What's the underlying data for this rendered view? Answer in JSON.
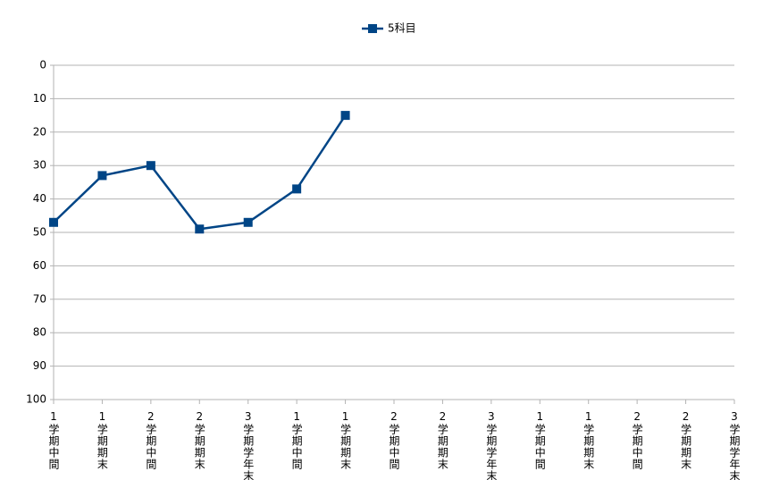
{
  "chart_data": {
    "type": "line",
    "categories": [
      "1学期中間",
      "1学期期末",
      "2学期中間",
      "2学期期末",
      "3学期学年末",
      "1学期中間",
      "1学期期末",
      "2学期中間",
      "2学期期末",
      "3学期学年末",
      "1学期中間",
      "1学期期末",
      "2学期中間",
      "2学期期末",
      "3学期学年末"
    ],
    "series": [
      {
        "name": "5科目",
        "color": "#004586",
        "values": [
          47,
          33,
          30,
          49,
          47,
          37,
          15,
          null,
          null,
          null,
          null,
          null,
          null,
          null,
          null
        ]
      }
    ],
    "ylim": [
      0,
      100
    ],
    "y_inverted": true,
    "yticks": [
      0,
      10,
      20,
      30,
      40,
      50,
      60,
      70,
      80,
      90,
      100
    ],
    "grid": true,
    "legend": "top"
  }
}
